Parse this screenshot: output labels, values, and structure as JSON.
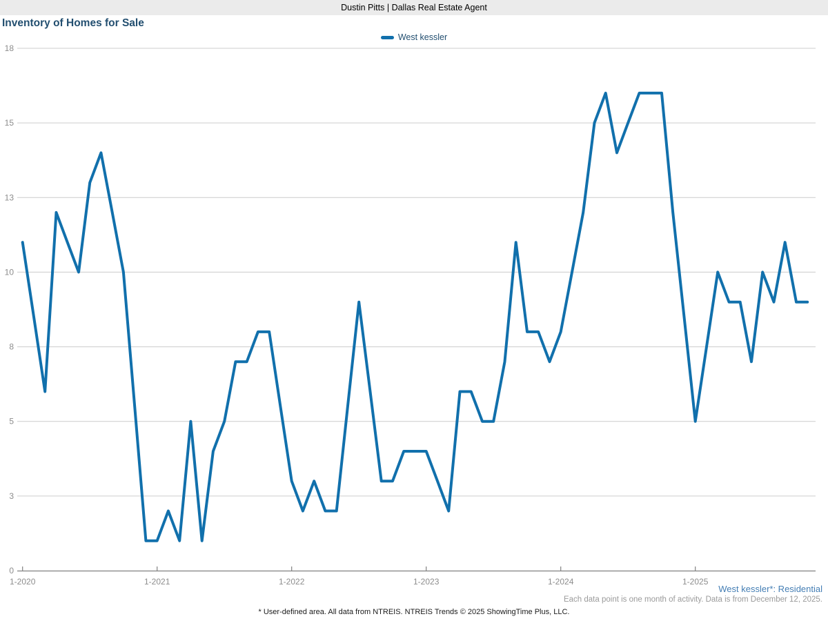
{
  "header": {
    "title": "Dustin Pitts | Dallas Real Estate Agent"
  },
  "footer": {
    "series_note": "West kessler*: Residential",
    "data_note": "Each data point is one month of activity. Data is from December 12, 2025.",
    "disclaimer": "* User-defined area. All data from NTREIS. NTREIS Trends © 2025 ShowingTime Plus, LLC."
  },
  "colors": {
    "line": "#1170ac",
    "title_text": "#234f70",
    "footer_blue": "#447eb4",
    "axis_text": "#8c8c8c",
    "gridline": "#cccccc",
    "axis_line": "#808080",
    "header_bg": "#ebebeb"
  },
  "chart_data": {
    "type": "line",
    "title": "Inventory of Homes for Sale",
    "xlabel": "",
    "ylabel": "",
    "ylim": [
      0,
      17.5
    ],
    "grid": true,
    "legend_position": "top-center",
    "y_ticks": [
      {
        "value": 0,
        "label": "0"
      },
      {
        "value": 2.5,
        "label": "3"
      },
      {
        "value": 5,
        "label": "5"
      },
      {
        "value": 7.5,
        "label": "8"
      },
      {
        "value": 10,
        "label": "10"
      },
      {
        "value": 12.5,
        "label": "13"
      },
      {
        "value": 15,
        "label": "15"
      },
      {
        "value": 17.5,
        "label": "18"
      }
    ],
    "x_tick_month_indices": [
      0,
      12,
      24,
      36,
      48,
      60
    ],
    "x_tick_labels": [
      "1-2020",
      "1-2021",
      "1-2022",
      "1-2023",
      "1-2024",
      "1-2025"
    ],
    "months": [
      "1-2020",
      "2-2020",
      "3-2020",
      "4-2020",
      "5-2020",
      "6-2020",
      "7-2020",
      "8-2020",
      "9-2020",
      "10-2020",
      "11-2020",
      "12-2020",
      "1-2021",
      "2-2021",
      "3-2021",
      "4-2021",
      "5-2021",
      "6-2021",
      "7-2021",
      "8-2021",
      "9-2021",
      "10-2021",
      "11-2021",
      "12-2021",
      "1-2022",
      "2-2022",
      "3-2022",
      "4-2022",
      "5-2022",
      "6-2022",
      "7-2022",
      "8-2022",
      "9-2022",
      "10-2022",
      "11-2022",
      "12-2022",
      "1-2023",
      "2-2023",
      "3-2023",
      "4-2023",
      "5-2023",
      "6-2023",
      "7-2023",
      "8-2023",
      "9-2023",
      "10-2023",
      "11-2023",
      "12-2023",
      "1-2024",
      "2-2024",
      "3-2024",
      "4-2024",
      "5-2024",
      "6-2024",
      "7-2024",
      "8-2024",
      "9-2024",
      "10-2024",
      "11-2024",
      "12-2024",
      "1-2025",
      "2-2025",
      "3-2025",
      "4-2025",
      "5-2025",
      "6-2025",
      "7-2025",
      "8-2025",
      "9-2025",
      "10-2025",
      "11-2025"
    ],
    "series": [
      {
        "name": "West kessler",
        "color": "#1170ac",
        "values": [
          11,
          8.5,
          6,
          12,
          11,
          10,
          13,
          14,
          12,
          10,
          5.5,
          1,
          1,
          2,
          1,
          5,
          1,
          4,
          5,
          7,
          7,
          8,
          8,
          5.5,
          3,
          2,
          3,
          2,
          2,
          5.5,
          9,
          6,
          3,
          3,
          4,
          4,
          4,
          3,
          2,
          6,
          6,
          5,
          5,
          7,
          11,
          8,
          8,
          7,
          8,
          10,
          12,
          15,
          16,
          14,
          15,
          16,
          16,
          16,
          12,
          8.5,
          5,
          7.5,
          10,
          9,
          9,
          7,
          10,
          9,
          11,
          9,
          9
        ]
      }
    ]
  }
}
